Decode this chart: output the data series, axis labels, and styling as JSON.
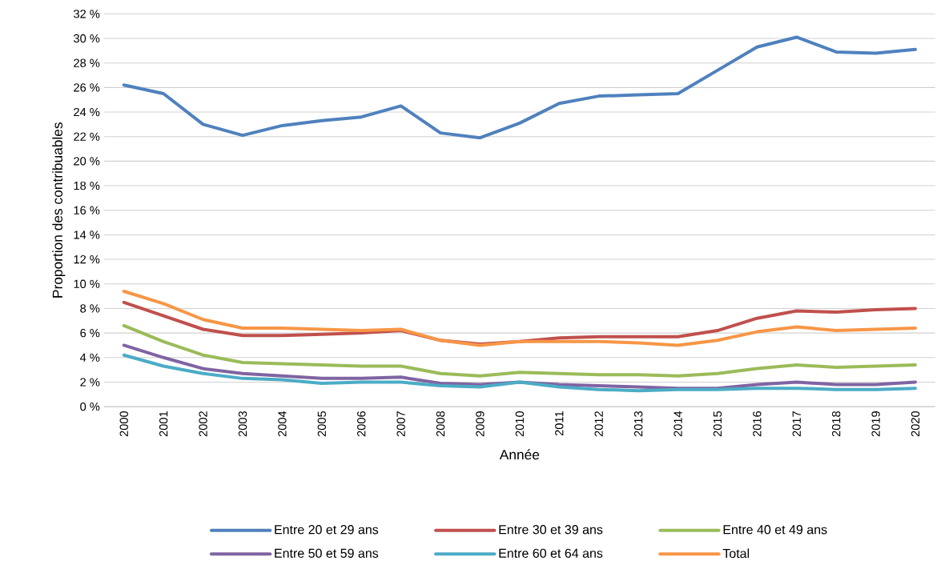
{
  "chart_data": {
    "type": "line",
    "xlabel": "Année",
    "ylabel": "Proportion des contribuables",
    "categories": [
      "2000",
      "2001",
      "2002",
      "2003",
      "2004",
      "2005",
      "2006",
      "2007",
      "2008",
      "2009",
      "2010",
      "2011",
      "2012",
      "2013",
      "2014",
      "2015",
      "2016",
      "2017",
      "2018",
      "2019",
      "2020"
    ],
    "ylim": [
      0,
      32
    ],
    "yticks": [
      {
        "value": 0,
        "label": "0 %"
      },
      {
        "value": 2,
        "label": "2 %"
      },
      {
        "value": 4,
        "label": "4 %"
      },
      {
        "value": 6,
        "label": "6 %"
      },
      {
        "value": 8,
        "label": "8 %"
      },
      {
        "value": 10,
        "label": "10 %"
      },
      {
        "value": 12,
        "label": "12 %"
      },
      {
        "value": 14,
        "label": "14 %"
      },
      {
        "value": 16,
        "label": "16 %"
      },
      {
        "value": 18,
        "label": "18 %"
      },
      {
        "value": 20,
        "label": "20 %"
      },
      {
        "value": 22,
        "label": "22 %"
      },
      {
        "value": 24,
        "label": "24 %"
      },
      {
        "value": 26,
        "label": "26 %"
      },
      {
        "value": 28,
        "label": "28 %"
      },
      {
        "value": 30,
        "label": "30 %"
      },
      {
        "value": 32,
        "label": "32 %"
      }
    ],
    "grid": "y",
    "legend": "bottom",
    "marker": "none",
    "line_style": "solid",
    "series": [
      {
        "name": "Entre 20 et 29 ans",
        "color": "#4f81bd",
        "values": [
          26.2,
          25.5,
          23.0,
          22.1,
          22.9,
          23.3,
          23.6,
          24.5,
          22.3,
          21.9,
          23.1,
          24.7,
          25.3,
          25.4,
          25.5,
          27.4,
          29.3,
          30.1,
          28.9,
          28.8,
          29.1
        ]
      },
      {
        "name": "Entre 30 et 39 ans",
        "color": "#c0504d",
        "values": [
          8.5,
          7.4,
          6.3,
          5.8,
          5.8,
          5.9,
          6.0,
          6.2,
          5.4,
          5.1,
          5.3,
          5.6,
          5.7,
          5.7,
          5.7,
          6.2,
          7.2,
          7.8,
          7.7,
          7.9,
          8.0
        ]
      },
      {
        "name": "Entre 40 et 49 ans",
        "color": "#9bbb59",
        "values": [
          6.6,
          5.3,
          4.2,
          3.6,
          3.5,
          3.4,
          3.3,
          3.3,
          2.7,
          2.5,
          2.8,
          2.7,
          2.6,
          2.6,
          2.5,
          2.7,
          3.1,
          3.4,
          3.2,
          3.3,
          3.4
        ]
      },
      {
        "name": "Entre 50 et 59 ans",
        "color": "#8064a2",
        "values": [
          5.0,
          4.0,
          3.1,
          2.7,
          2.5,
          2.3,
          2.3,
          2.4,
          1.9,
          1.8,
          2.0,
          1.8,
          1.7,
          1.6,
          1.5,
          1.5,
          1.8,
          2.0,
          1.8,
          1.8,
          2.0
        ]
      },
      {
        "name": "Entre 60 et 64 ans",
        "color": "#4bacc6",
        "values": [
          4.2,
          3.3,
          2.7,
          2.3,
          2.2,
          1.9,
          2.0,
          2.0,
          1.7,
          1.6,
          2.0,
          1.6,
          1.4,
          1.3,
          1.4,
          1.4,
          1.5,
          1.5,
          1.4,
          1.4,
          1.5
        ]
      },
      {
        "name": "Total",
        "color": "#f79646",
        "values": [
          9.4,
          8.4,
          7.1,
          6.4,
          6.4,
          6.3,
          6.2,
          6.3,
          5.4,
          5.0,
          5.3,
          5.3,
          5.3,
          5.2,
          5.0,
          5.4,
          6.1,
          6.5,
          6.2,
          6.3,
          6.4
        ]
      }
    ]
  }
}
